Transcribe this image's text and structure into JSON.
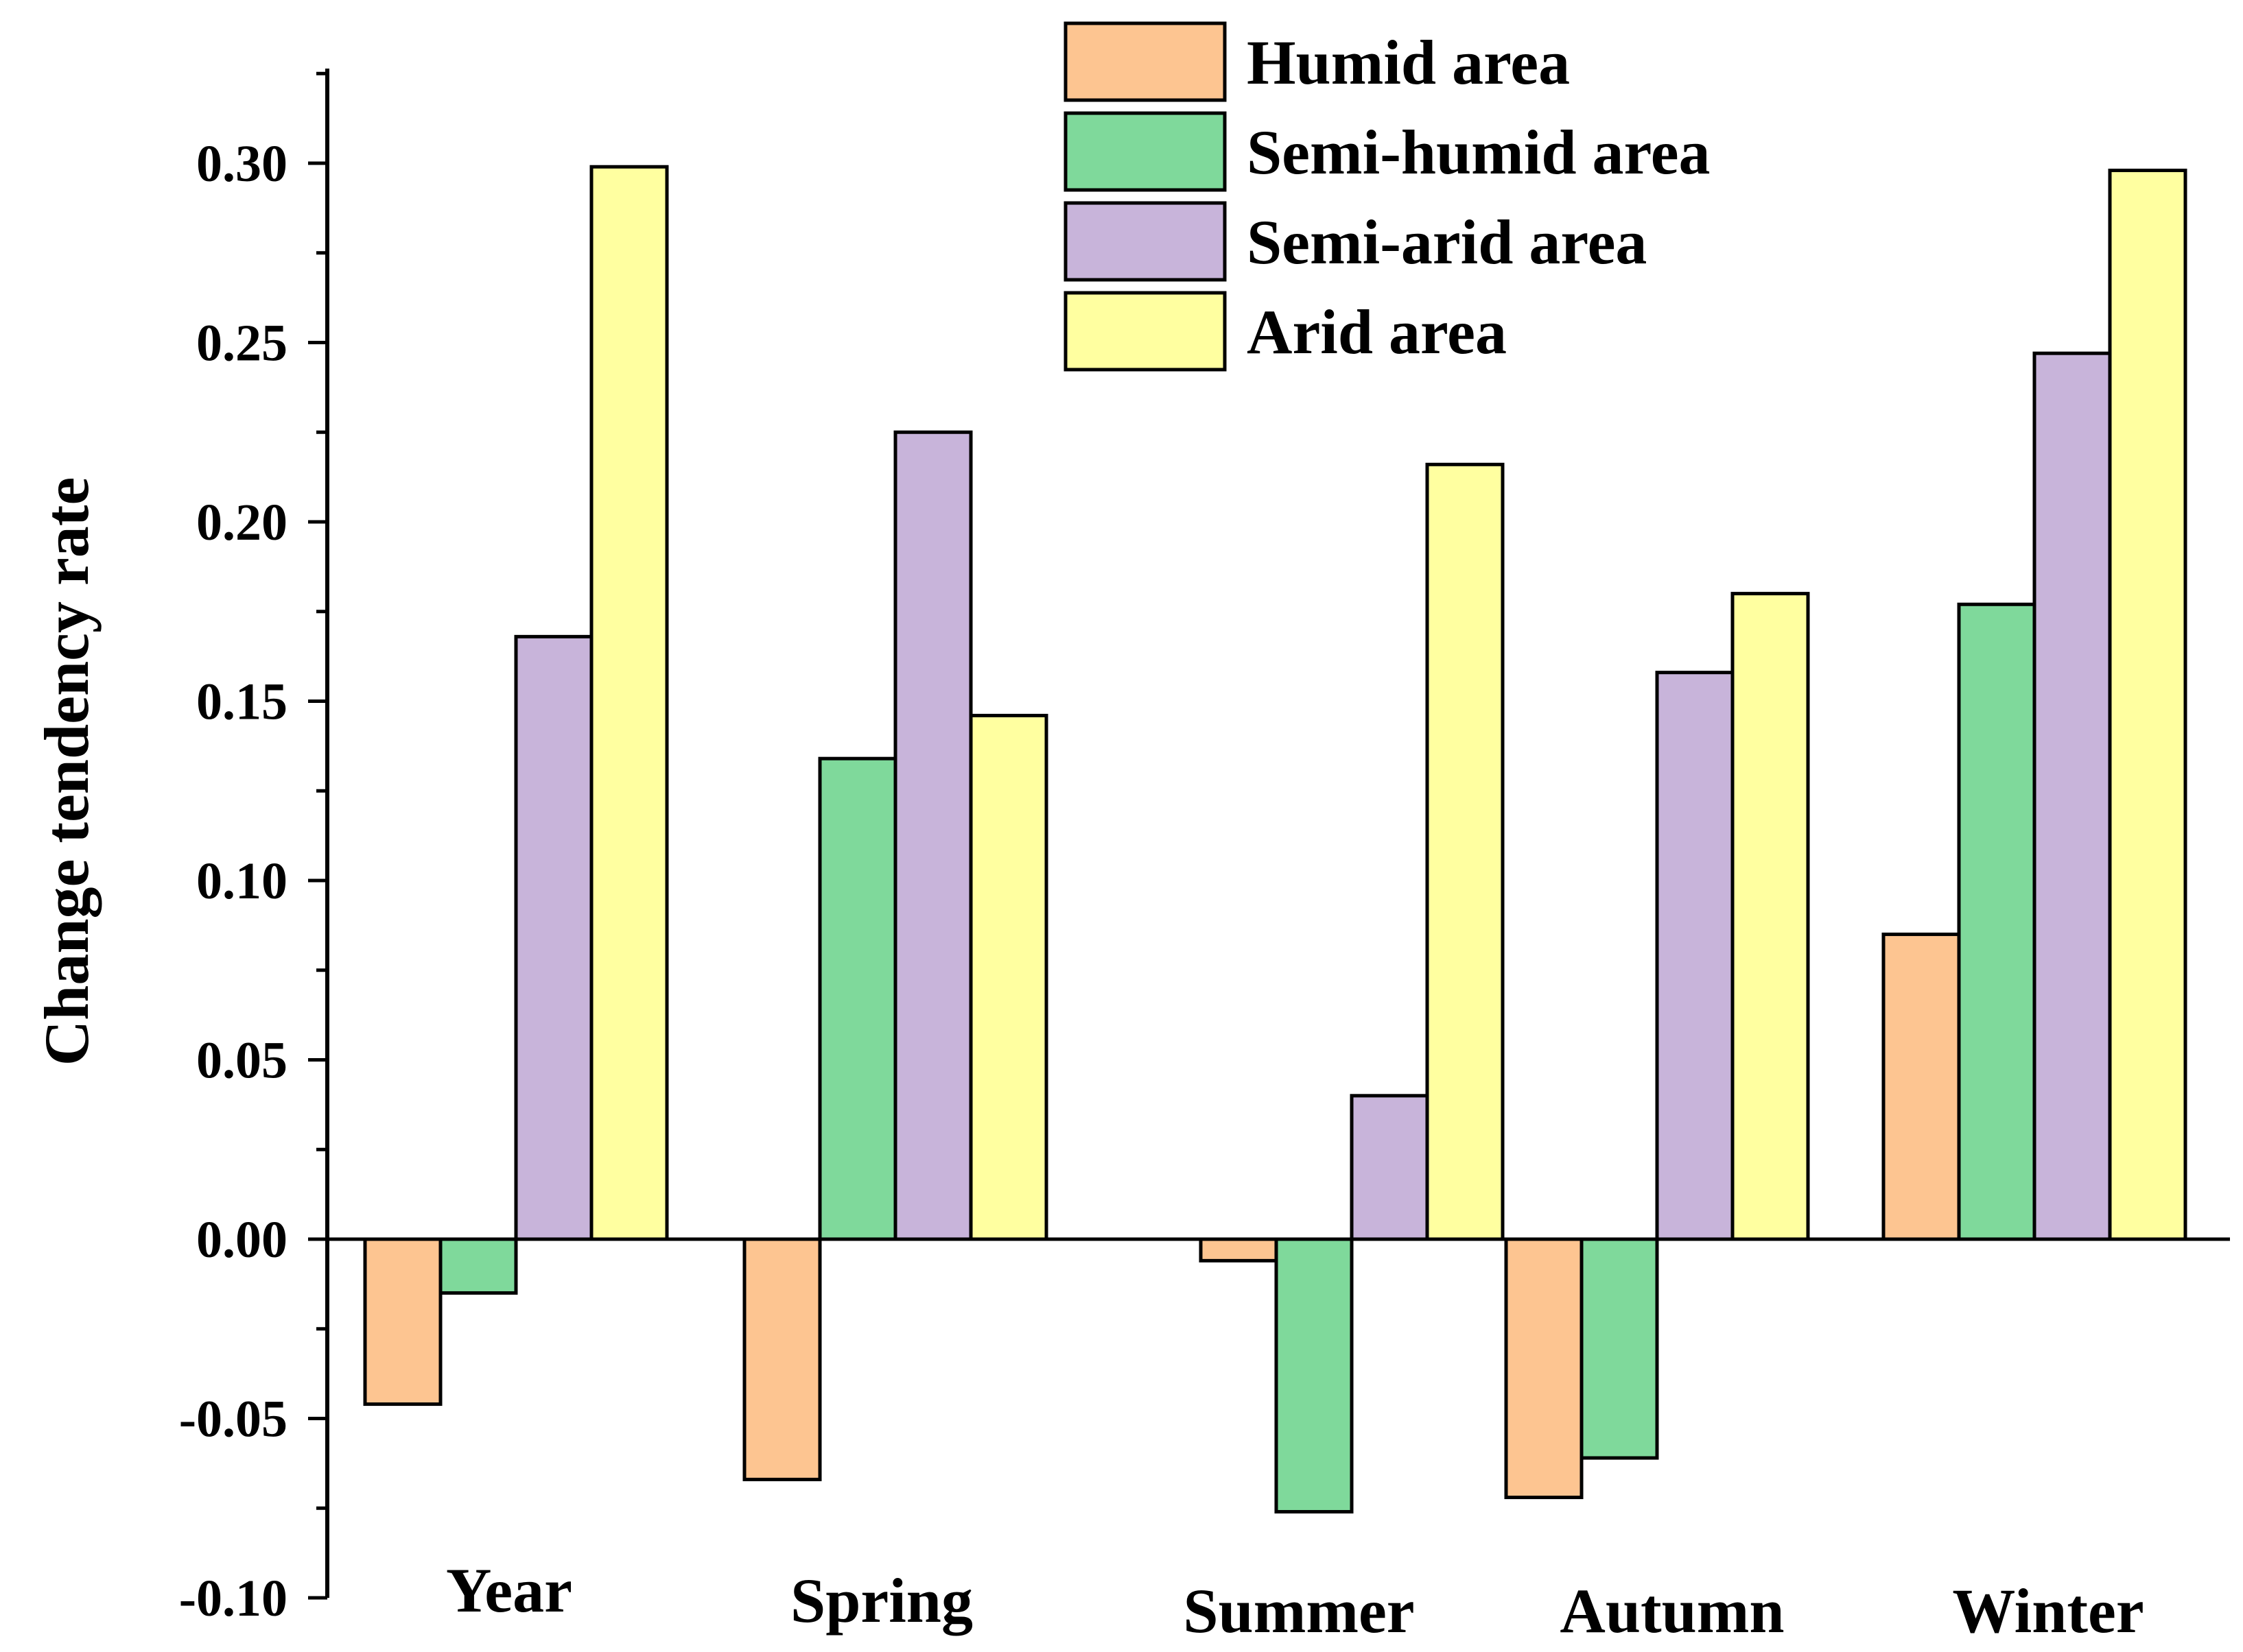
{
  "chart_data": {
    "type": "bar",
    "title": "",
    "xlabel": "",
    "ylabel": "Change tendency rate",
    "ylim": [
      -0.1,
      0.325
    ],
    "yticks": [
      "-0.10",
      "-0.05",
      "0.00",
      "0.05",
      "0.10",
      "0.15",
      "0.20",
      "0.25",
      "0.30"
    ],
    "ytick_values": [
      -0.1,
      -0.05,
      0.0,
      0.05,
      0.1,
      0.15,
      0.2,
      0.25,
      0.3
    ],
    "categories": [
      "Year",
      "Spring",
      "Summer",
      "Autumn",
      "Winter"
    ],
    "legend_position": "top-center",
    "grid": false,
    "series": [
      {
        "name": "Humid area",
        "color": "#FDC591",
        "values": [
          -0.046,
          -0.067,
          -0.006,
          -0.072,
          0.085
        ]
      },
      {
        "name": "Semi-humid area",
        "color": "#7FD99B",
        "values": [
          -0.015,
          0.134,
          -0.076,
          -0.061,
          0.177
        ]
      },
      {
        "name": "Semi-arid area",
        "color": "#C8B4DA",
        "values": [
          0.168,
          0.225,
          0.04,
          0.158,
          0.247
        ]
      },
      {
        "name": "Arid area",
        "color": "#FFFFA0",
        "values": [
          0.299,
          0.146,
          0.216,
          0.18,
          0.298
        ]
      }
    ]
  }
}
